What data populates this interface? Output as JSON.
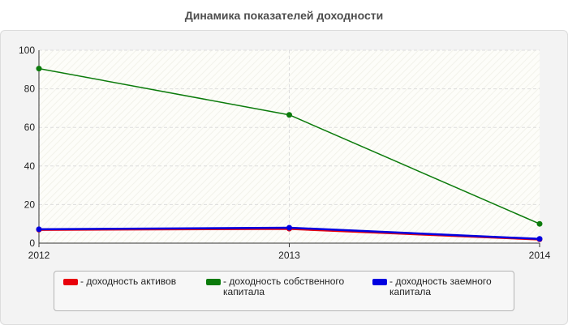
{
  "chart_data": {
    "type": "line",
    "title": "Динамика показателей доходности",
    "xlabel": "",
    "ylabel": "",
    "categories": [
      "2012",
      "2013",
      "2014"
    ],
    "ylim": [
      0,
      100
    ],
    "yticks": [
      0,
      20,
      40,
      60,
      80,
      100
    ],
    "grid": true,
    "legend_position": "bottom",
    "series": [
      {
        "name": "- доходность активов",
        "color": "#e8000b",
        "values": [
          7.0,
          7.5,
          2.0
        ]
      },
      {
        "name": "- доходность собственного капитала",
        "color": "#0b7b0b",
        "values": [
          90.5,
          66.5,
          10.0
        ]
      },
      {
        "name": "- доходность заемного капитала",
        "color": "#0000e0",
        "values": [
          7.2,
          8.0,
          2.2
        ]
      }
    ]
  }
}
